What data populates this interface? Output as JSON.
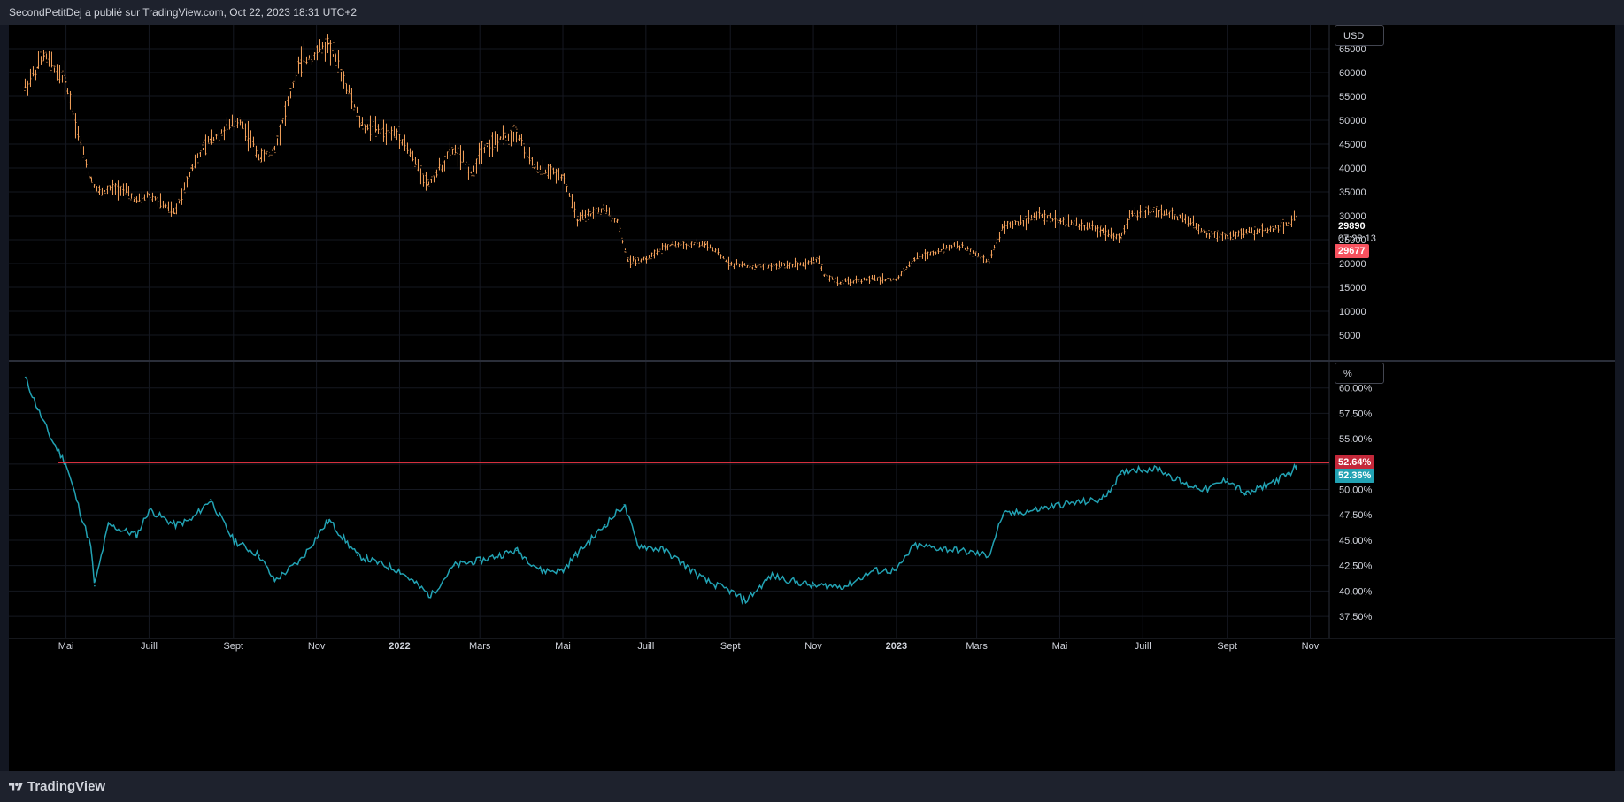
{
  "header": {
    "publisher_text": "SecondPetitDej a publié sur TradingView.com, Oct 22, 2023 18:31 UTC+2"
  },
  "footer": {
    "brand": "TradingView",
    "logo_icon": "tradingview-logo-icon"
  },
  "price_pane": {
    "unit_label": "USD",
    "last_price": "29890",
    "countdown": "07:28:13",
    "price_tag": "29677",
    "price_tag_color": "#f7525f",
    "candle_color": "#f7a35c"
  },
  "indicator_pane": {
    "unit_label": "%",
    "horizontal_line_tag": "52.64%",
    "horizontal_line_color": "#f23645",
    "series_tag": "52.36%",
    "series_color": "#22a2b3"
  },
  "colors": {
    "background": "#000000",
    "chrome": "#1e222d",
    "grid": "#1a1d26"
  },
  "chart_data": [
    {
      "type": "candlestick",
      "y_axis_ticks": [
        "5000",
        "10000",
        "15000",
        "20000",
        "25000",
        "30000",
        "35000",
        "40000",
        "45000",
        "50000",
        "55000",
        "60000",
        "65000"
      ],
      "ylim": [
        0,
        70000
      ],
      "x_axis_ticks": [
        "Mai",
        "Juill",
        "Sept",
        "Nov",
        "2022",
        "Mars",
        "Mai",
        "Juill",
        "Sept",
        "Nov",
        "2023",
        "Mars",
        "Mai",
        "Juill",
        "Sept",
        "Nov"
      ],
      "x": [
        "2021-04-01",
        "2021-04-10",
        "2021-04-15",
        "2021-05-01",
        "2021-05-12",
        "2021-05-19",
        "2021-05-25",
        "2021-06-10",
        "2021-06-22",
        "2021-07-01",
        "2021-07-20",
        "2021-08-01",
        "2021-08-15",
        "2021-09-06",
        "2021-09-21",
        "2021-10-01",
        "2021-10-20",
        "2021-11-10",
        "2021-11-25",
        "2021-12-04",
        "2021-12-15",
        "2022-01-01",
        "2022-01-22",
        "2022-02-10",
        "2022-02-24",
        "2022-03-01",
        "2022-03-28",
        "2022-04-10",
        "2022-05-01",
        "2022-05-12",
        "2022-05-31",
        "2022-06-10",
        "2022-06-18",
        "2022-07-01",
        "2022-07-20",
        "2022-08-14",
        "2022-09-01",
        "2022-09-20",
        "2022-10-01",
        "2022-10-25",
        "2022-11-05",
        "2022-11-09",
        "2022-11-21",
        "2022-12-15",
        "2023-01-01",
        "2023-01-14",
        "2023-02-15",
        "2023-03-10",
        "2023-03-20",
        "2023-04-14",
        "2023-05-01",
        "2023-06-01",
        "2023-06-15",
        "2023-06-23",
        "2023-07-13",
        "2023-08-01",
        "2023-08-17",
        "2023-09-01",
        "2023-09-15",
        "2023-10-01",
        "2023-10-16",
        "2023-10-22"
      ],
      "y": [
        57000,
        61000,
        63500,
        58000,
        45000,
        38000,
        35000,
        36000,
        33000,
        34500,
        30500,
        40000,
        46000,
        50000,
        42000,
        44000,
        62000,
        66000,
        56000,
        49000,
        48000,
        47000,
        36500,
        44000,
        38500,
        44000,
        47500,
        40000,
        38500,
        29000,
        31500,
        29000,
        20500,
        21000,
        24000,
        24000,
        20000,
        19200,
        19500,
        20000,
        21000,
        17500,
        16000,
        16800,
        16600,
        21000,
        24000,
        20500,
        27500,
        30000,
        29000,
        27000,
        25500,
        30500,
        31000,
        29200,
        26300,
        25800,
        26500,
        27000,
        28500,
        29890
      ]
    },
    {
      "type": "line",
      "y_axis_ticks": [
        "37.50%",
        "40.00%",
        "42.50%",
        "45.00%",
        "47.50%",
        "50.00%",
        "52.50%",
        "55.00%",
        "57.50%",
        "60.00%"
      ],
      "ylim": [
        36.2,
        62.5
      ],
      "horizontal_line": 52.64,
      "x": [
        "2021-04-01",
        "2021-04-10",
        "2021-04-20",
        "2021-05-01",
        "2021-05-12",
        "2021-05-19",
        "2021-05-22",
        "2021-06-01",
        "2021-06-22",
        "2021-07-01",
        "2021-07-20",
        "2021-08-01",
        "2021-08-15",
        "2021-09-01",
        "2021-09-20",
        "2021-10-01",
        "2021-10-20",
        "2021-11-10",
        "2021-12-01",
        "2022-01-01",
        "2022-01-24",
        "2022-02-10",
        "2022-03-01",
        "2022-03-28",
        "2022-04-15",
        "2022-05-01",
        "2022-05-10",
        "2022-06-01",
        "2022-06-15",
        "2022-06-25",
        "2022-07-15",
        "2022-08-14",
        "2022-09-01",
        "2022-09-12",
        "2022-10-01",
        "2022-11-01",
        "2022-11-25",
        "2022-12-15",
        "2023-01-01",
        "2023-01-14",
        "2023-02-15",
        "2023-03-10",
        "2023-03-20",
        "2023-04-14",
        "2023-05-01",
        "2023-06-01",
        "2023-06-15",
        "2023-06-23",
        "2023-07-13",
        "2023-08-01",
        "2023-08-17",
        "2023-09-01",
        "2023-09-15",
        "2023-10-01",
        "2023-10-16",
        "2023-10-22"
      ],
      "y": [
        61.0,
        58.0,
        55.0,
        52.5,
        47.5,
        44.5,
        40.5,
        46.5,
        45.5,
        48.0,
        46.5,
        47.0,
        49.0,
        45.0,
        43.5,
        41.0,
        43.0,
        47.0,
        43.5,
        42.0,
        39.5,
        42.5,
        43.0,
        44.0,
        42.0,
        42.0,
        43.5,
        46.5,
        48.5,
        44.5,
        44.0,
        41.0,
        40.0,
        39.0,
        41.5,
        40.5,
        40.5,
        42.0,
        42.0,
        44.5,
        44.0,
        43.5,
        47.5,
        48.0,
        48.5,
        49.0,
        51.5,
        52.0,
        52.0,
        50.5,
        50.0,
        51.0,
        49.5,
        50.5,
        51.5,
        52.36
      ]
    }
  ]
}
